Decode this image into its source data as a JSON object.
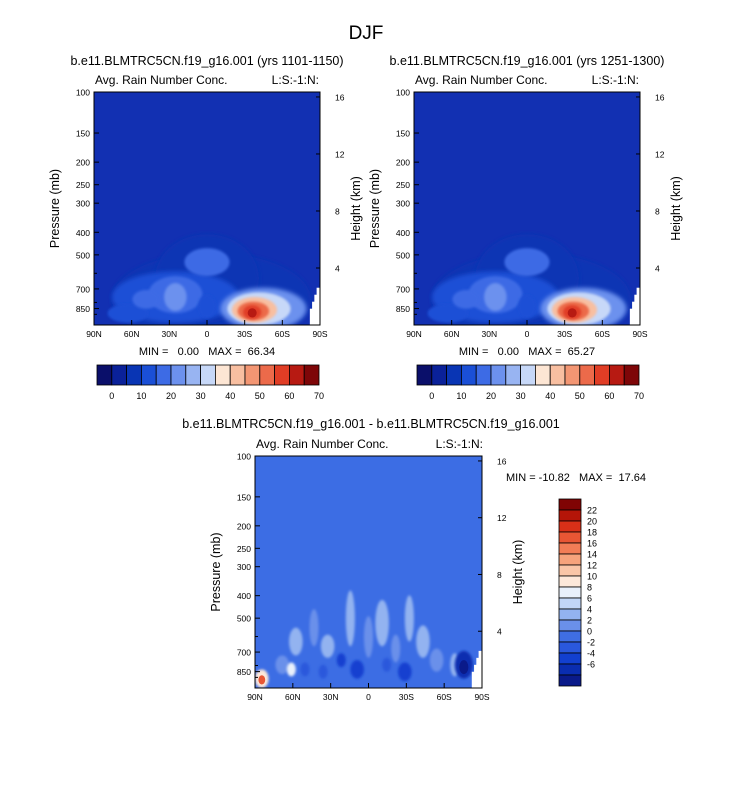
{
  "figure": {
    "title": "DJF"
  },
  "panels": [
    {
      "id": "p1",
      "title": "b.e11.BLMTRC5CN.f19_g16.001 (yrs 1101-1150)",
      "left_label": "Avg. Rain Number Conc.",
      "right_label": "L:S:-1:N:",
      "stats": "MIN =   0.00   MAX =  66.34"
    },
    {
      "id": "p2",
      "title": "b.e11.BLMTRC5CN.f19_g16.001 (yrs 1251-1300)",
      "left_label": "Avg. Rain Number Conc.",
      "right_label": "L:S:-1:N:",
      "stats": "MIN =   0.00   MAX =  65.27"
    },
    {
      "id": "p3",
      "title": "b.e11.BLMTRC5CN.f19_g16.001 - b.e11.BLMTRC5CN.f19_g16.001",
      "left_label": "Avg. Rain Number Conc.",
      "right_label": "L:S:-1:N:",
      "stats": "MIN = -10.82   MAX =  17.64"
    }
  ],
  "colors": {
    "abs_bar": [
      "#0a0f6a",
      "#0a2199",
      "#0935b4",
      "#1a4fd6",
      "#3d6be5",
      "#6c91ee",
      "#98b4f2",
      "#c7d8f8",
      "#fde6d4",
      "#f8bfa1",
      "#f39673",
      "#ec6a4a",
      "#e03d25",
      "#b71a12",
      "#7e0608"
    ],
    "diff_bar": [
      "#0a1a8a",
      "#0a2db0",
      "#1240d0",
      "#2a58dc",
      "#3f6ee3",
      "#6a90ea",
      "#93b3f0",
      "#c2d6f7",
      "#e9f0fb",
      "#fde8da",
      "#f9c6a8",
      "#f6a37c",
      "#f27d56",
      "#e85634",
      "#d83018",
      "#b41508",
      "#800404"
    ],
    "abs_background": "#1230b2",
    "diff_background": "#3c6de4"
  },
  "chart_data": [
    {
      "type": "heatmap",
      "panel": "p1",
      "title": "b.e11.BLMTRC5CN.f19_g16.001 (yrs 1101-1150)",
      "variable": "Avg. Rain Number Conc.",
      "xlabel": "",
      "ylabel": "Pressure (mb)",
      "ylabel_right": "Height (km)",
      "x_ticks": [
        "90N",
        "60N",
        "30N",
        "0",
        "30S",
        "60S",
        "90S"
      ],
      "x_tick_values": [
        90,
        60,
        30,
        0,
        -30,
        -60,
        -90
      ],
      "y_ticks": [
        "100",
        "150",
        "200",
        "250",
        "300",
        "400",
        "500",
        "700",
        "850"
      ],
      "y_tick_values": [
        100,
        150,
        200,
        250,
        300,
        400,
        500,
        700,
        850
      ],
      "y_right_ticks": [
        "16",
        "12",
        "8",
        "4"
      ],
      "y_right_tick_values": [
        16,
        12,
        8,
        4
      ],
      "ylim_mb": [
        100,
        1000
      ],
      "min": 0.0,
      "max": 66.34,
      "contour_levels": [
        0,
        5,
        10,
        15,
        20,
        25,
        30,
        35,
        40,
        45,
        50,
        55,
        60,
        65,
        70
      ]
    },
    {
      "type": "heatmap",
      "panel": "p2",
      "title": "b.e11.BLMTRC5CN.f19_g16.001 (yrs 1251-1300)",
      "variable": "Avg. Rain Number Conc.",
      "xlabel": "",
      "ylabel": "Pressure (mb)",
      "ylabel_right": "Height (km)",
      "x_ticks": [
        "90N",
        "60N",
        "30N",
        "0",
        "30S",
        "60S",
        "90S"
      ],
      "x_tick_values": [
        90,
        60,
        30,
        0,
        -30,
        -60,
        -90
      ],
      "y_ticks": [
        "100",
        "150",
        "200",
        "250",
        "300",
        "400",
        "500",
        "700",
        "850"
      ],
      "y_tick_values": [
        100,
        150,
        200,
        250,
        300,
        400,
        500,
        700,
        850
      ],
      "y_right_ticks": [
        "16",
        "12",
        "8",
        "4"
      ],
      "y_right_tick_values": [
        16,
        12,
        8,
        4
      ],
      "ylim_mb": [
        100,
        1000
      ],
      "min": 0.0,
      "max": 65.27,
      "contour_levels": [
        0,
        5,
        10,
        15,
        20,
        25,
        30,
        35,
        40,
        45,
        50,
        55,
        60,
        65,
        70
      ]
    },
    {
      "type": "heatmap",
      "panel": "p3",
      "title": "b.e11.BLMTRC5CN.f19_g16.001 - b.e11.BLMTRC5CN.f19_g16.001",
      "variable": "Avg. Rain Number Conc.",
      "xlabel": "",
      "ylabel": "Pressure (mb)",
      "ylabel_right": "Height (km)",
      "x_ticks": [
        "90N",
        "60N",
        "30N",
        "0",
        "30S",
        "60S",
        "90S"
      ],
      "x_tick_values": [
        90,
        60,
        30,
        0,
        -30,
        -60,
        -90
      ],
      "y_ticks": [
        "100",
        "150",
        "200",
        "250",
        "300",
        "400",
        "500",
        "700",
        "850"
      ],
      "y_tick_values": [
        100,
        150,
        200,
        250,
        300,
        400,
        500,
        700,
        850
      ],
      "y_right_ticks": [
        "16",
        "12",
        "8",
        "4"
      ],
      "y_right_tick_values": [
        16,
        12,
        8,
        4
      ],
      "ylim_mb": [
        100,
        1000
      ],
      "min": -10.82,
      "max": 17.64,
      "contour_levels": [
        -6,
        -4,
        -2,
        0,
        2,
        4,
        6,
        8,
        10,
        12,
        14,
        16,
        18,
        20,
        22
      ]
    }
  ],
  "colorbars": {
    "abs": {
      "labels": [
        "0",
        "10",
        "20",
        "30",
        "40",
        "50",
        "60",
        "70"
      ],
      "label_values": [
        0,
        10,
        20,
        30,
        40,
        50,
        60,
        70
      ]
    },
    "diff": {
      "labels": [
        "22",
        "20",
        "18",
        "16",
        "14",
        "12",
        "10",
        "8",
        "6",
        "4",
        "2",
        "0",
        "-2",
        "-4",
        "-6"
      ]
    }
  }
}
